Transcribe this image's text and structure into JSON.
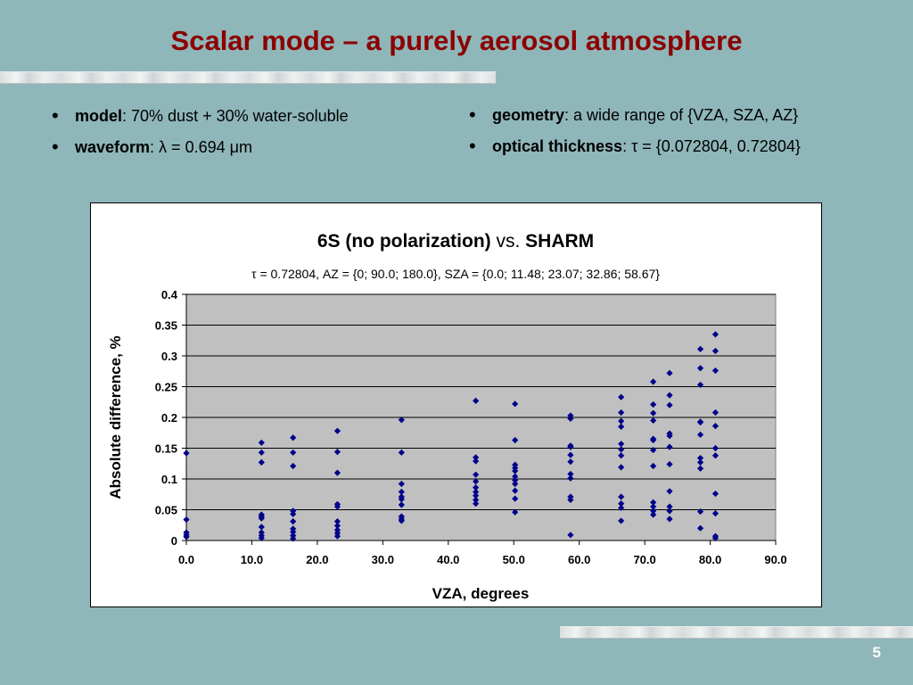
{
  "slide": {
    "title": "Scalar mode – a purely aerosol atmosphere",
    "page_number": "5"
  },
  "bullets_left": [
    {
      "key": "model",
      "text": ": 70% dust + 30% water-soluble"
    },
    {
      "key": "waveform",
      "text": ":  λ = 0.694 μm"
    }
  ],
  "bullets_right": [
    {
      "key": "geometry",
      "text": ": a wide range of {VZA, SZA, AZ}"
    },
    {
      "key": "optical thickness",
      "text": ":  τ = {0.072804, 0.72804}"
    }
  ],
  "colors": {
    "title": "#8b0000",
    "background": "#8fb6b9",
    "plot_area": "#c0c0c0",
    "marker": "#00008b"
  },
  "chart_data": {
    "type": "scatter",
    "title_bold_1": "6S (no polarization)",
    "title_normal": " vs. ",
    "title_bold_2": "SHARM",
    "subtitle": "τ = 0.72804, AZ = {0; 90.0; 180.0}, SZA = {0.0; 11.48;  23.07; 32.86;  58.67}",
    "xlabel": "VZA, degrees",
    "ylabel": "Absolute difference, %",
    "xlim": [
      0,
      90
    ],
    "ylim": [
      0,
      0.4
    ],
    "x_ticks": [
      "0.0",
      "10.0",
      "20.0",
      "30.0",
      "40.0",
      "50.0",
      "60.0",
      "70.0",
      "80.0",
      "90.0"
    ],
    "y_ticks": [
      "0",
      "0.05",
      "0.1",
      "0.15",
      "0.2",
      "0.25",
      "0.3",
      "0.35",
      "0.4"
    ],
    "grid": true,
    "marker": "diamond",
    "points": [
      [
        0,
        0.142
      ],
      [
        0,
        0.034
      ],
      [
        0,
        0.013
      ],
      [
        0,
        0.009
      ],
      [
        0,
        0.006
      ],
      [
        11.48,
        0.159
      ],
      [
        11.48,
        0.143
      ],
      [
        11.48,
        0.127
      ],
      [
        11.48,
        0.042
      ],
      [
        11.48,
        0.039
      ],
      [
        11.48,
        0.036
      ],
      [
        11.48,
        0.022
      ],
      [
        11.48,
        0.013
      ],
      [
        11.48,
        0.008
      ],
      [
        11.48,
        0.004
      ],
      [
        16.3,
        0.167
      ],
      [
        16.3,
        0.143
      ],
      [
        16.3,
        0.121
      ],
      [
        16.3,
        0.048
      ],
      [
        16.3,
        0.043
      ],
      [
        16.3,
        0.031
      ],
      [
        16.3,
        0.019
      ],
      [
        16.3,
        0.014
      ],
      [
        16.3,
        0.008
      ],
      [
        16.3,
        0.003
      ],
      [
        23.07,
        0.178
      ],
      [
        23.07,
        0.144
      ],
      [
        23.07,
        0.11
      ],
      [
        23.07,
        0.059
      ],
      [
        23.07,
        0.055
      ],
      [
        23.07,
        0.031
      ],
      [
        23.07,
        0.024
      ],
      [
        23.07,
        0.017
      ],
      [
        23.07,
        0.012
      ],
      [
        23.07,
        0.007
      ],
      [
        32.86,
        0.196
      ],
      [
        32.86,
        0.143
      ],
      [
        32.86,
        0.092
      ],
      [
        32.86,
        0.079
      ],
      [
        32.86,
        0.071
      ],
      [
        32.86,
        0.067
      ],
      [
        32.86,
        0.058
      ],
      [
        32.86,
        0.039
      ],
      [
        32.86,
        0.035
      ],
      [
        32.86,
        0.032
      ],
      [
        44.2,
        0.227
      ],
      [
        44.2,
        0.135
      ],
      [
        44.2,
        0.129
      ],
      [
        44.2,
        0.107
      ],
      [
        44.2,
        0.096
      ],
      [
        44.2,
        0.086
      ],
      [
        44.2,
        0.079
      ],
      [
        44.2,
        0.073
      ],
      [
        44.2,
        0.066
      ],
      [
        44.2,
        0.06
      ],
      [
        50.2,
        0.222
      ],
      [
        50.2,
        0.163
      ],
      [
        50.2,
        0.123
      ],
      [
        50.2,
        0.118
      ],
      [
        50.2,
        0.113
      ],
      [
        50.2,
        0.104
      ],
      [
        50.2,
        0.098
      ],
      [
        50.2,
        0.092
      ],
      [
        50.2,
        0.081
      ],
      [
        50.2,
        0.068
      ],
      [
        50.2,
        0.046
      ],
      [
        58.67,
        0.203
      ],
      [
        58.67,
        0.198
      ],
      [
        58.67,
        0.154
      ],
      [
        58.67,
        0.152
      ],
      [
        58.67,
        0.139
      ],
      [
        58.67,
        0.128
      ],
      [
        58.67,
        0.108
      ],
      [
        58.67,
        0.101
      ],
      [
        58.67,
        0.071
      ],
      [
        58.67,
        0.066
      ],
      [
        58.67,
        0.009
      ],
      [
        66.4,
        0.233
      ],
      [
        66.4,
        0.208
      ],
      [
        66.4,
        0.194
      ],
      [
        66.4,
        0.185
      ],
      [
        66.4,
        0.157
      ],
      [
        66.4,
        0.148
      ],
      [
        66.4,
        0.138
      ],
      [
        66.4,
        0.119
      ],
      [
        66.4,
        0.071
      ],
      [
        66.4,
        0.06
      ],
      [
        66.4,
        0.053
      ],
      [
        66.4,
        0.032
      ],
      [
        71.3,
        0.258
      ],
      [
        71.3,
        0.221
      ],
      [
        71.3,
        0.207
      ],
      [
        71.3,
        0.195
      ],
      [
        71.3,
        0.165
      ],
      [
        71.3,
        0.163
      ],
      [
        71.3,
        0.147
      ],
      [
        71.3,
        0.121
      ],
      [
        71.3,
        0.062
      ],
      [
        71.3,
        0.055
      ],
      [
        71.3,
        0.048
      ],
      [
        71.3,
        0.042
      ],
      [
        73.8,
        0.272
      ],
      [
        73.8,
        0.236
      ],
      [
        73.8,
        0.22
      ],
      [
        73.8,
        0.174
      ],
      [
        73.8,
        0.17
      ],
      [
        73.8,
        0.152
      ],
      [
        73.8,
        0.124
      ],
      [
        73.8,
        0.08
      ],
      [
        73.8,
        0.055
      ],
      [
        73.8,
        0.048
      ],
      [
        73.8,
        0.035
      ],
      [
        78.5,
        0.311
      ],
      [
        78.5,
        0.28
      ],
      [
        78.5,
        0.253
      ],
      [
        78.5,
        0.193
      ],
      [
        78.5,
        0.192
      ],
      [
        78.5,
        0.172
      ],
      [
        78.5,
        0.134
      ],
      [
        78.5,
        0.127
      ],
      [
        78.5,
        0.117
      ],
      [
        78.5,
        0.047
      ],
      [
        78.5,
        0.02
      ],
      [
        80.8,
        0.335
      ],
      [
        80.8,
        0.308
      ],
      [
        80.8,
        0.276
      ],
      [
        80.8,
        0.208
      ],
      [
        80.8,
        0.186
      ],
      [
        80.8,
        0.15
      ],
      [
        80.8,
        0.138
      ],
      [
        80.8,
        0.076
      ],
      [
        80.8,
        0.044
      ],
      [
        80.8,
        0.007
      ],
      [
        80.8,
        0.004
      ]
    ]
  }
}
